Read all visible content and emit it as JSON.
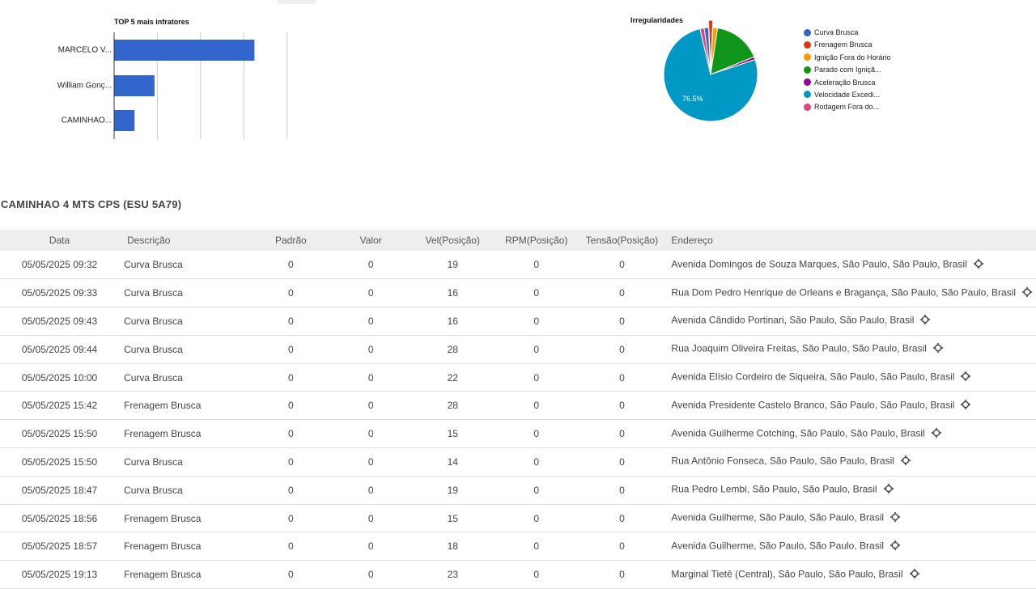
{
  "bar_chart": {
    "type": "bar",
    "title": "TOP 5 mais infratores",
    "categories": [
      "MARCELO V...",
      "William Gonç...",
      "CAMINHAO..."
    ],
    "values": [
      7,
      2,
      1
    ],
    "xlim": [
      0,
      10
    ],
    "orientation": "horizontal",
    "color": "#3366cc",
    "grid": true
  },
  "chart_data": {
    "type": "pie",
    "title": "Irregularidades",
    "categories": [
      "Curva Brusca",
      "Frenagem Brusca",
      "Ignição Fora do Horário",
      "Parado com Igniçã...",
      "Aceleração Brusca",
      "Velocidade Excedi...",
      "Rodagem Fora do..."
    ],
    "values": [
      1.5,
      1.5,
      1.6,
      16.5,
      1.0,
      76.5,
      1.4
    ],
    "colors": [
      "#3366cc",
      "#dc3912",
      "#ff9900",
      "#109618",
      "#990099",
      "#0099c6",
      "#dd4477"
    ],
    "slice_label": "76.5%",
    "legend": "right"
  },
  "section_title": "CAMINHAO 4 MTS CPS (ESU 5A79)",
  "table": {
    "headers": [
      "Data",
      "Descrição",
      "Padrão",
      "Valor",
      "Vel(Posição)",
      "RPM(Posição)",
      "Tensão(Posição)",
      "Endereço"
    ],
    "rows": [
      {
        "data": "05/05/2025 09:32",
        "desc": "Curva Brusca",
        "padrao": "0",
        "valor": "0",
        "vel": "19",
        "rpm": "0",
        "tensao": "0",
        "end": "Avenida Domingos de Souza Marques, São Paulo, São Paulo, Brasil"
      },
      {
        "data": "05/05/2025 09:33",
        "desc": "Curva Brusca",
        "padrao": "0",
        "valor": "0",
        "vel": "16",
        "rpm": "0",
        "tensao": "0",
        "end": "Rua Dom Pedro Henrique de Orleans e Bragança, São Paulo, São Paulo, Brasil"
      },
      {
        "data": "05/05/2025 09:43",
        "desc": "Curva Brusca",
        "padrao": "0",
        "valor": "0",
        "vel": "16",
        "rpm": "0",
        "tensao": "0",
        "end": "Avenida Cândido Portinari, São Paulo, São Paulo, Brasil"
      },
      {
        "data": "05/05/2025 09:44",
        "desc": "Curva Brusca",
        "padrao": "0",
        "valor": "0",
        "vel": "28",
        "rpm": "0",
        "tensao": "0",
        "end": "Rua Joaquim Oliveira Freitas, São Paulo, São Paulo, Brasil"
      },
      {
        "data": "05/05/2025 10:00",
        "desc": "Curva Brusca",
        "padrao": "0",
        "valor": "0",
        "vel": "22",
        "rpm": "0",
        "tensao": "0",
        "end": "Avenida Elísio Cordeiro de Siqueira, São Paulo, São Paulo, Brasil"
      },
      {
        "data": "05/05/2025 15:42",
        "desc": "Frenagem Brusca",
        "padrao": "0",
        "valor": "0",
        "vel": "28",
        "rpm": "0",
        "tensao": "0",
        "end": "Avenida Presidente Castelo Branco, São Paulo, São Paulo, Brasil"
      },
      {
        "data": "05/05/2025 15:50",
        "desc": "Frenagem Brusca",
        "padrao": "0",
        "valor": "0",
        "vel": "15",
        "rpm": "0",
        "tensao": "0",
        "end": "Avenida Guilherme Cotching, São Paulo, São Paulo, Brasil"
      },
      {
        "data": "05/05/2025 15:50",
        "desc": "Curva Brusca",
        "padrao": "0",
        "valor": "0",
        "vel": "14",
        "rpm": "0",
        "tensao": "0",
        "end": "Rua Antônio Fonseca, São Paulo, São Paulo, Brasil"
      },
      {
        "data": "05/05/2025 18:47",
        "desc": "Curva Brusca",
        "padrao": "0",
        "valor": "0",
        "vel": "19",
        "rpm": "0",
        "tensao": "0",
        "end": "Rua Pedro Lembi, São Paulo, São Paulo, Brasil"
      },
      {
        "data": "05/05/2025 18:56",
        "desc": "Frenagem Brusca",
        "padrao": "0",
        "valor": "0",
        "vel": "15",
        "rpm": "0",
        "tensao": "0",
        "end": "Avenida Guilherme, São Paulo, São Paulo, Brasil"
      },
      {
        "data": "05/05/2025 18:57",
        "desc": "Frenagem Brusca",
        "padrao": "0",
        "valor": "0",
        "vel": "18",
        "rpm": "0",
        "tensao": "0",
        "end": "Avenida Guilherme, São Paulo, São Paulo, Brasil"
      },
      {
        "data": "05/05/2025 19:13",
        "desc": "Frenagem Brusca",
        "padrao": "0",
        "valor": "0",
        "vel": "23",
        "rpm": "0",
        "tensao": "0",
        "end": "Marginal Tietê (Central), São Paulo, São Paulo, Brasil"
      }
    ],
    "row_icon": "crosshair-icon"
  }
}
